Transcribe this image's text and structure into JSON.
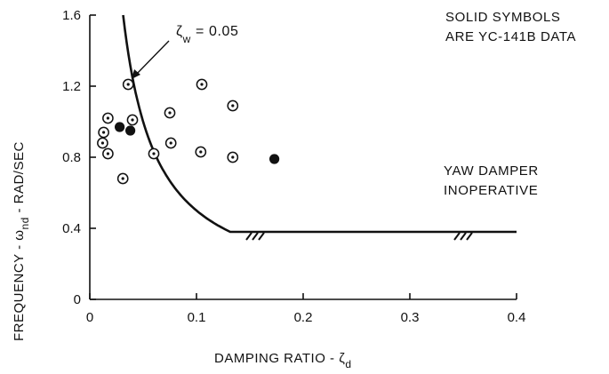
{
  "chart_data": {
    "type": "scatter",
    "xlabel_prefix": "DAMPING RATIO - ",
    "xlabel_symbol": "ζ",
    "xlabel_sub": "d",
    "ylabel_prefix": "FREQUENCY - ",
    "ylabel_symbol": "ω",
    "ylabel_sub": "nd",
    "ylabel_suffix": " - RAD/SEC",
    "xlim": [
      0,
      0.4
    ],
    "ylim": [
      0,
      1.6
    ],
    "xticks": [
      "0",
      "0.1",
      "0.2",
      "0.3",
      "0.4"
    ],
    "yticks": [
      "0",
      "0.4",
      "0.8",
      "1.2",
      "1.6"
    ],
    "grid": false,
    "series": [
      {
        "marker": "circle-dot",
        "points": [
          [
            0.013,
            0.94
          ],
          [
            0.012,
            0.88
          ],
          [
            0.017,
            1.02
          ],
          [
            0.017,
            0.82
          ],
          [
            0.031,
            0.68
          ],
          [
            0.036,
            1.21
          ],
          [
            0.04,
            1.01
          ],
          [
            0.06,
            0.82
          ],
          [
            0.075,
            1.05
          ],
          [
            0.076,
            0.88
          ],
          [
            0.104,
            0.83
          ],
          [
            0.105,
            1.21
          ],
          [
            0.134,
            1.09
          ],
          [
            0.134,
            0.8
          ]
        ]
      },
      {
        "marker": "solid-circle",
        "points": [
          [
            0.028,
            0.97
          ],
          [
            0.038,
            0.95
          ],
          [
            0.173,
            0.79
          ]
        ]
      }
    ],
    "boundary_curve": {
      "label_symbol": "ζ",
      "label_sub": "w",
      "label_value": " = 0.05",
      "zeta_w": 0.05,
      "horizontal_level": 0.38,
      "horizontal_end_x": 0.4,
      "hatch_x": [
        0.155,
        0.35
      ]
    },
    "annotations": {
      "note_line1": "SOLID SYMBOLS",
      "note_line2": "ARE YC-141B DATA",
      "region_line1": "YAW DAMPER",
      "region_line2": "INOPERATIVE"
    },
    "colors": {
      "ink": "#111111",
      "background": "#ffffff"
    }
  }
}
